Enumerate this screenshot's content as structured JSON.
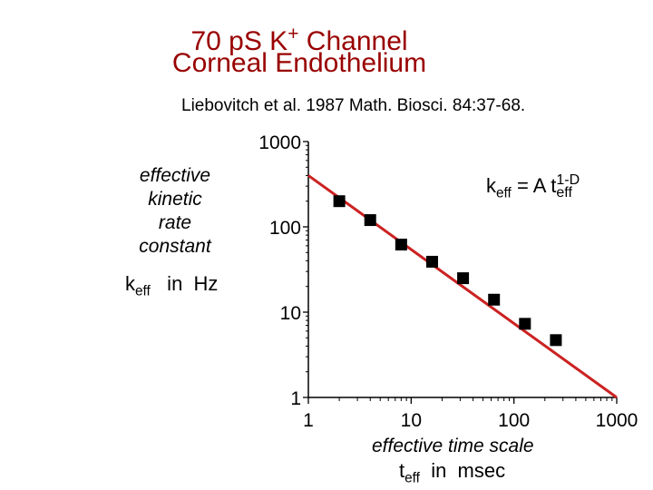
{
  "title": {
    "line1_main": "70 pS K",
    "line1_sup": "+",
    "line1_rest": " Channel",
    "line2": "Corneal Endothelium"
  },
  "citation": "Liebovitch et al.  1987  Math. Biosci. 84:37-68.",
  "ylabel": {
    "line1": "effective",
    "line2": "kinetic",
    "line3": "rate",
    "line4": "constant",
    "unit_k": "k",
    "unit_sub": "eff",
    "unit_rest": "   in  Hz"
  },
  "xlabel": {
    "line1": "effective time scale",
    "unit_t": "t",
    "unit_sub": "eff",
    "unit_rest": "  in  msec"
  },
  "equation": {
    "k": "k",
    "k_sub": "eff",
    "mid": " = A t",
    "t_sup": "1-D",
    "t_sub": "eff"
  },
  "colors": {
    "fit_line": "#cc2222",
    "marker": "#000000",
    "title": "#990000"
  },
  "chart_data": {
    "type": "scatter",
    "x_scale": "log",
    "y_scale": "log",
    "xlim": [
      1,
      1000
    ],
    "ylim": [
      1,
      1000
    ],
    "x_tick_labels": [
      "1",
      "10",
      "100",
      "1000"
    ],
    "y_tick_labels": [
      "1",
      "10",
      "100",
      "1000"
    ],
    "marker": "square",
    "points": {
      "x": [
        2,
        4,
        8,
        16,
        32,
        64,
        128,
        256
      ],
      "y": [
        200,
        120,
        62,
        39,
        25,
        14,
        7.3,
        4.7
      ]
    },
    "fit": {
      "x": [
        1,
        1000
      ],
      "y": [
        400,
        1
      ]
    }
  }
}
